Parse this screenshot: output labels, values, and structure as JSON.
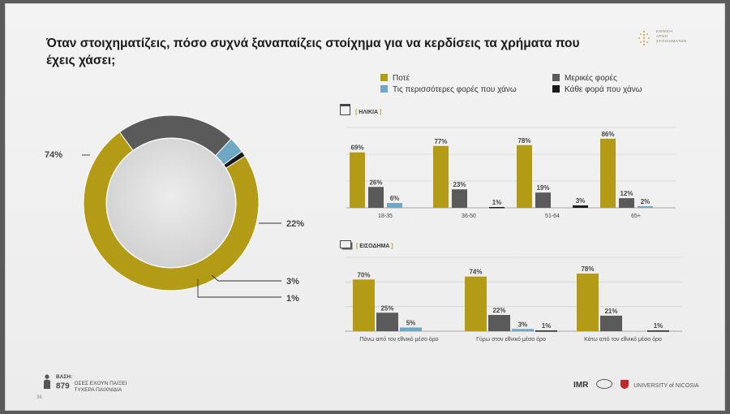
{
  "title": "Όταν στοιχηματίζεις, πόσο συχνά ξαναπαίζεις στοίχημα για να κερδίσεις τα χρήματα που έχεις χάσει;",
  "logo_text": [
    "ΕΘΝΙΚΗ",
    "ΑΡΧΗ",
    "ΣΤΟΙΧΗΜΑΤΩΝ"
  ],
  "colors": {
    "never": "#b49b16",
    "sometimes": "#5a5a5a",
    "often": "#6fa8c4",
    "always": "#1a1a1a"
  },
  "legend": [
    "Ποτέ",
    "Μερικές φορές",
    "Τις περισσότερες φορές που χάνω",
    "Κάθε φορά που χάνω"
  ],
  "section_age": "ΗΛΙΚΙΑ",
  "section_income": "ΕΙΣΟΔΗΜΑ",
  "base": {
    "label": "ΒΑΣΗ:",
    "n": "879",
    "text1": "ΟΣΕΣ ΕΧΟΥΝ ΠΑΙΞΕΙ",
    "text2": "ΤΥΧΕΡΑ ΠΑΙΧΝΙΔΙΑ"
  },
  "page_number": "36",
  "footer_logos": [
    "IMR",
    "UNIVERSITY of NICOSIA"
  ],
  "chart_data": [
    {
      "type": "pie",
      "donut": true,
      "labels": [
        "Ποτέ",
        "Μερικές φορές",
        "Τις περισσότερες φορές που χάνω",
        "Κάθε φορά που χάνω"
      ],
      "values": [
        74,
        22,
        3,
        1
      ],
      "value_labels": [
        "74%",
        "22%",
        "3%",
        "1%"
      ]
    },
    {
      "type": "bar",
      "title": "ΗΛΙΚΙΑ",
      "categories": [
        "18-35",
        "36-50",
        "51-64",
        "65+"
      ],
      "series": [
        {
          "name": "Ποτέ",
          "values": [
            69,
            77,
            78,
            86
          ]
        },
        {
          "name": "Μερικές φορές",
          "values": [
            26,
            23,
            19,
            12
          ]
        },
        {
          "name": "Τις περισσότερες φορές που χάνω",
          "values": [
            6,
            null,
            null,
            2
          ]
        },
        {
          "name": "Κάθε φορά που χάνω",
          "values": [
            null,
            1,
            3,
            null
          ]
        }
      ],
      "ylim": [
        0,
        100
      ]
    },
    {
      "type": "bar",
      "title": "ΕΙΣΟΔΗΜΑ",
      "categories": [
        "Πάνω από τον εθνικό μέσο όρο",
        "Γύρω στον εθνικό μέσο όρο",
        "Κάτω από τον εθνικό μέσο όρο"
      ],
      "series": [
        {
          "name": "Ποτέ",
          "values": [
            70,
            74,
            78
          ]
        },
        {
          "name": "Μερικές φορές",
          "values": [
            25,
            22,
            21
          ]
        },
        {
          "name": "Τις περισσότερες φορές που χάνω",
          "values": [
            5,
            3,
            null
          ]
        },
        {
          "name": "Κάθε φορά που χάνω",
          "values": [
            null,
            1,
            1
          ]
        }
      ],
      "ylim": [
        0,
        100
      ]
    }
  ]
}
